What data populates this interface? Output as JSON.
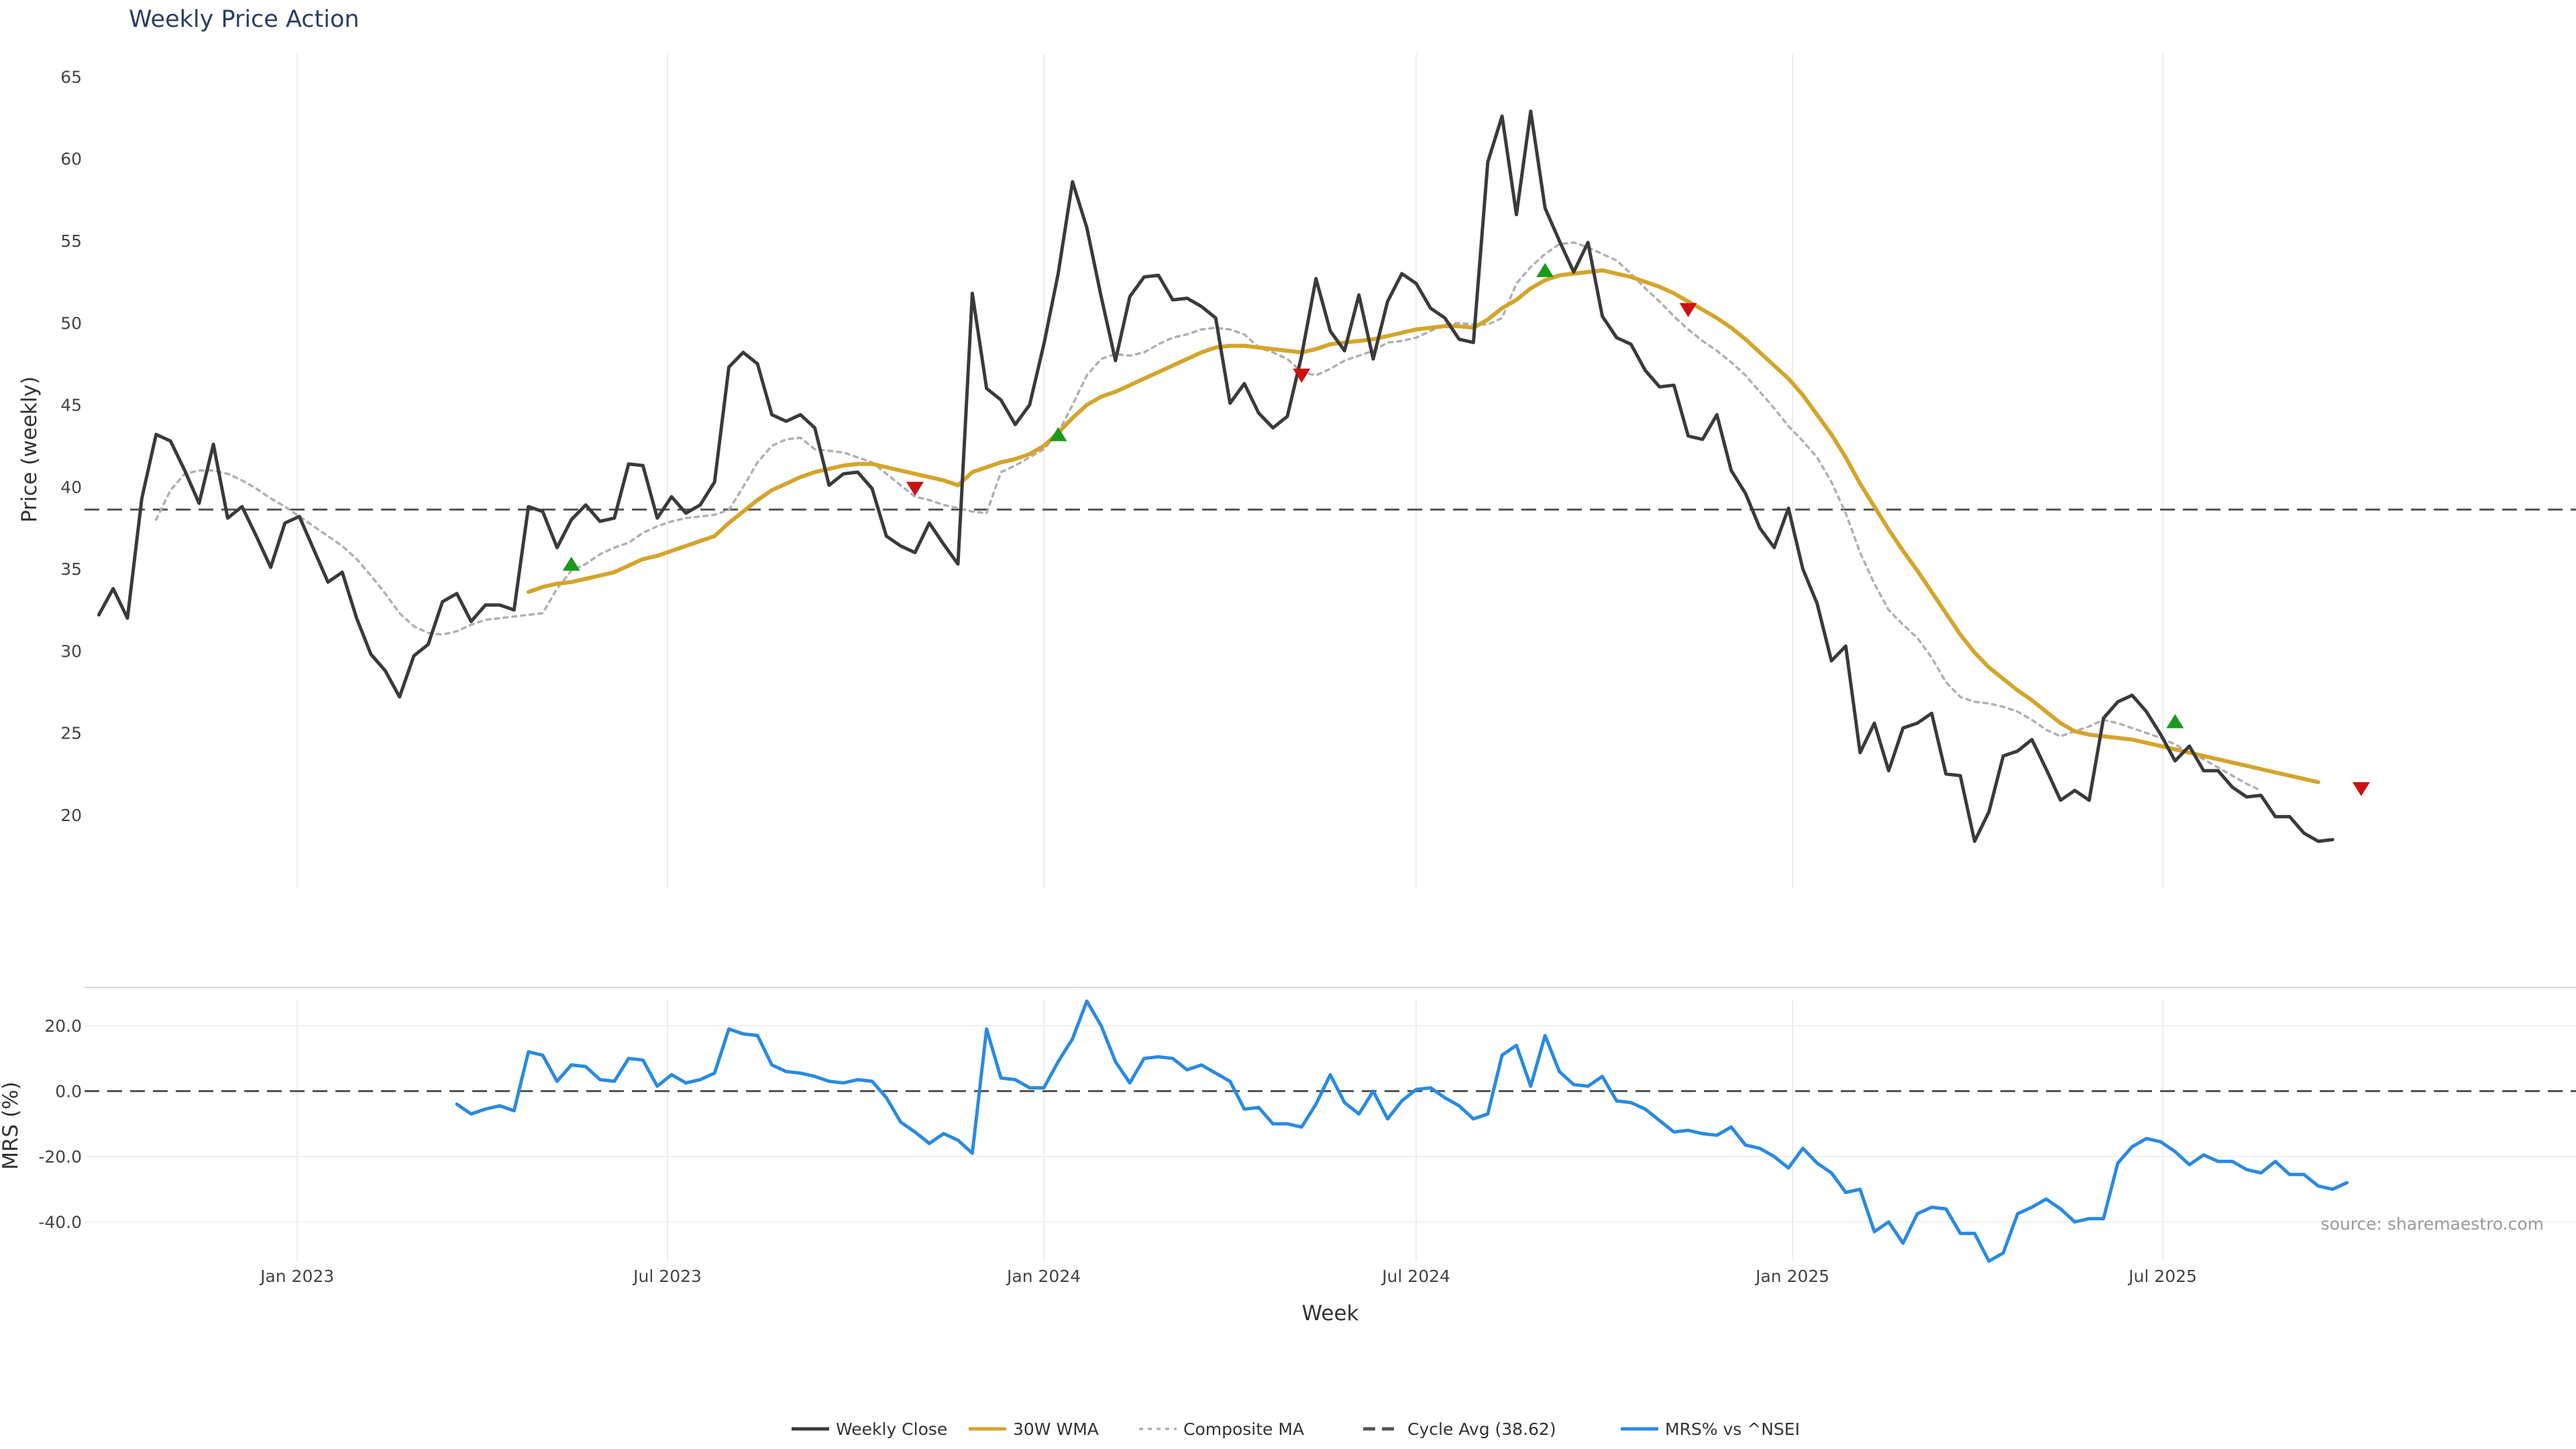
{
  "chart_data": {
    "type": "line",
    "title": "Weekly Price Action",
    "source_note": "source: sharemaestro.com",
    "xlabel": "Week",
    "x_range": [
      "2022-09-19",
      "2026-01-19"
    ],
    "x_tick_labels": [
      "Jan 2023",
      "Jul 2023",
      "Jan 2024",
      "Jul 2024",
      "Jan 2025",
      "Jul 2025"
    ],
    "x_tick_dates": [
      "2023-01-01",
      "2023-07-01",
      "2024-01-01",
      "2024-07-01",
      "2025-01-01",
      "2025-07-01"
    ],
    "vertical_grid": true,
    "horizontal_grid": false,
    "legend_position": "bottom-center",
    "price_panel": {
      "ylabel": "Price (weekly)",
      "ylim": [
        15.5,
        66
      ],
      "yticks": [
        20,
        25,
        30,
        35,
        40,
        45,
        50,
        55,
        60,
        65
      ],
      "cycle_avg": 38.62,
      "start_date": "2022-09-26",
      "series": [
        {
          "name": "Weekly Close",
          "color": "#3a3a3a",
          "values": [
            32.2,
            33.8,
            32.0,
            39.3,
            43.2,
            42.8,
            41.0,
            39.0,
            42.6,
            38.1,
            38.8,
            37.0,
            35.1,
            37.8,
            38.2,
            36.2,
            34.2,
            34.8,
            32.0,
            29.8,
            28.8,
            27.2,
            29.7,
            30.4,
            33.0,
            33.5,
            31.8,
            32.8,
            32.8,
            32.5,
            38.8,
            38.5,
            36.3,
            38.0,
            38.9,
            37.9,
            38.1,
            41.4,
            41.3,
            38.1,
            39.4,
            38.4,
            38.9,
            40.3,
            47.3,
            48.2,
            47.5,
            44.4,
            44.0,
            44.4,
            43.6,
            40.1,
            40.8,
            40.9,
            39.9,
            37.0,
            36.4,
            36.0,
            37.8,
            36.5,
            35.3,
            51.8,
            46.0,
            45.3,
            43.8,
            45.0,
            48.7,
            53.0,
            58.6,
            55.8,
            51.6,
            47.7,
            51.6,
            52.8,
            52.9,
            51.4,
            51.5,
            51.0,
            50.3,
            45.1,
            46.3,
            44.5,
            43.6,
            44.3,
            48.0,
            52.7,
            49.5,
            48.3,
            51.7,
            47.8,
            51.3,
            53.0,
            52.4,
            50.9,
            50.3,
            49.0,
            48.8,
            59.8,
            62.6,
            56.6,
            62.9,
            57.0,
            55.0,
            53.1,
            54.9,
            50.4,
            49.1,
            48.7,
            47.1,
            46.1,
            46.2,
            43.1,
            42.9,
            44.4,
            41.0,
            39.6,
            37.5,
            36.3,
            38.7,
            35.0,
            32.9,
            29.4,
            30.3,
            23.8,
            25.6,
            22.7,
            25.3,
            25.6,
            26.2,
            22.5,
            22.4,
            18.4,
            20.2,
            23.6,
            23.9,
            24.6,
            22.8,
            20.9,
            21.5,
            20.9,
            25.9,
            26.9,
            27.3,
            26.3,
            24.9,
            23.3,
            24.2,
            22.7,
            22.7,
            21.7,
            21.1,
            21.2,
            19.9,
            19.9,
            18.9,
            18.4,
            18.5
          ]
        },
        {
          "name": "30W WMA",
          "color": "#d4a52b",
          "start_index": 30,
          "values": [
            33.6,
            33.9,
            34.1,
            34.2,
            34.4,
            34.6,
            34.8,
            35.2,
            35.6,
            35.8,
            36.1,
            36.4,
            36.7,
            37.0,
            37.8,
            38.5,
            39.2,
            39.8,
            40.2,
            40.6,
            40.9,
            41.1,
            41.3,
            41.4,
            41.4,
            41.2,
            41.0,
            40.8,
            40.6,
            40.4,
            40.1,
            40.9,
            41.2,
            41.5,
            41.7,
            42.0,
            42.5,
            43.3,
            44.2,
            45.0,
            45.5,
            45.8,
            46.2,
            46.6,
            47.0,
            47.4,
            47.8,
            48.2,
            48.5,
            48.6,
            48.6,
            48.5,
            48.4,
            48.3,
            48.2,
            48.4,
            48.7,
            48.8,
            48.9,
            49.0,
            49.2,
            49.4,
            49.6,
            49.7,
            49.8,
            49.8,
            49.7,
            50.2,
            50.9,
            51.4,
            52.1,
            52.6,
            52.9,
            53.0,
            53.1,
            53.2,
            53.0,
            52.8,
            52.5,
            52.2,
            51.8,
            51.3,
            50.8,
            50.3,
            49.7,
            49.0,
            48.2,
            47.4,
            46.6,
            45.6,
            44.4,
            43.2,
            41.8,
            40.2,
            38.8,
            37.4,
            36.1,
            34.9,
            33.6,
            32.3,
            31.0,
            29.9,
            29.0,
            28.3,
            27.6,
            27.0,
            26.3,
            25.6,
            25.1,
            24.9,
            24.8,
            24.7,
            24.6,
            24.4,
            24.2,
            24.0,
            23.8,
            23.6,
            23.4,
            23.2,
            23.0,
            22.8,
            22.6,
            22.4,
            22.2,
            22.0
          ]
        },
        {
          "name": "Composite MA",
          "color": "#b0b0b0",
          "start_index": 4,
          "values": [
            38.0,
            39.8,
            40.8,
            41.0,
            41.0,
            40.8,
            40.4,
            39.9,
            39.3,
            38.8,
            38.2,
            37.6,
            37.0,
            36.4,
            35.6,
            34.6,
            33.5,
            32.3,
            31.5,
            31.1,
            31.0,
            31.2,
            31.6,
            31.9,
            32.0,
            32.1,
            32.2,
            32.3,
            33.8,
            34.9,
            35.3,
            35.9,
            36.3,
            36.6,
            37.2,
            37.6,
            37.9,
            38.1,
            38.2,
            38.3,
            38.6,
            40.0,
            41.5,
            42.5,
            42.9,
            43.0,
            42.3,
            42.2,
            42.1,
            41.8,
            41.5,
            40.8,
            40.1,
            39.4,
            39.2,
            38.9,
            38.7,
            38.5,
            38.4,
            40.9,
            41.3,
            41.8,
            42.3,
            43.3,
            45.0,
            46.8,
            47.8,
            48.1,
            48.0,
            48.2,
            48.7,
            49.1,
            49.3,
            49.6,
            49.7,
            49.6,
            49.3,
            48.5,
            48.2,
            47.8,
            47.0,
            46.8,
            47.2,
            47.7,
            48.0,
            48.3,
            48.8,
            48.9,
            49.1,
            49.5,
            49.9,
            50.0,
            49.9,
            49.9,
            50.3,
            52.4,
            53.4,
            54.2,
            54.8,
            54.9,
            54.6,
            54.2,
            53.8,
            53.0,
            52.1,
            51.3,
            50.4,
            49.6,
            48.9,
            48.3,
            47.6,
            46.8,
            45.8,
            44.8,
            43.7,
            42.8,
            41.8,
            40.3,
            38.4,
            36.0,
            34.1,
            32.5,
            31.6,
            30.8,
            29.6,
            28.1,
            27.2,
            26.9,
            26.8,
            26.6,
            26.3,
            25.8,
            25.2,
            24.8,
            25.1,
            25.4,
            25.8,
            25.6,
            25.3,
            25.0,
            24.7,
            24.3,
            23.8,
            23.4,
            22.9,
            22.4,
            21.9,
            21.5
          ]
        }
      ],
      "buy_signals": [
        {
          "index": 33,
          "value": 35.3
        },
        {
          "index": 67,
          "value": 43.2
        },
        {
          "index": 101,
          "value": 53.2
        },
        {
          "index": 145,
          "value": 25.7
        }
      ],
      "sell_signals": [
        {
          "index": 57,
          "value": 39.9
        },
        {
          "index": 84,
          "value": 46.8
        },
        {
          "index": 111,
          "value": 50.8
        },
        {
          "index": 158,
          "value": 21.6
        }
      ],
      "buy_color": "#1a9a1a",
      "sell_color": "#cc1111"
    },
    "mrs_panel": {
      "ylabel": "MRS (%)",
      "ylim": [
        -52,
        28
      ],
      "yticks": [
        20.0,
        0.0,
        -20.0,
        -40.0
      ],
      "zero_line": 0,
      "series": [
        {
          "name": "MRS% vs ^NSEI",
          "color": "#2a8ae0",
          "start_index": 25,
          "values": [
            -4,
            -7,
            -5.5,
            -4.5,
            -6,
            12,
            11,
            3,
            8,
            7.5,
            3.5,
            3,
            10,
            9.5,
            1.5,
            5,
            2.5,
            3.5,
            5.5,
            19,
            17.5,
            17,
            8,
            6,
            5.5,
            4.5,
            3,
            2.5,
            3.5,
            3,
            -2,
            -9.5,
            -12.5,
            -16,
            -13,
            -15,
            -19,
            19,
            4,
            3.5,
            1,
            1,
            9,
            16,
            27.5,
            20,
            9,
            2.5,
            10,
            10.5,
            10,
            6.5,
            8,
            5.5,
            3,
            -5.5,
            -5,
            -10,
            -10,
            -11,
            -4,
            5,
            -3.5,
            -7,
            0,
            -8.5,
            -3,
            0.5,
            1,
            -2,
            -4.5,
            -8.5,
            -7,
            11,
            14,
            1.5,
            17,
            6,
            2,
            1.5,
            4.5,
            -3,
            -3.5,
            -5.5,
            -9,
            -12.5,
            -12,
            -13,
            -13.5,
            -11,
            -16.5,
            -17.5,
            -20,
            -23.5,
            -17.5,
            -22,
            -25,
            -31,
            -30,
            -43,
            -40,
            -46.5,
            -37.5,
            -35.5,
            -36,
            -43.5,
            -43.5,
            -52,
            -49.5,
            -37.5,
            -35.5,
            -33,
            -36,
            -40,
            -39,
            -39,
            -22,
            -17,
            -14.5,
            -15.5,
            -18.5,
            -22.5,
            -19.5,
            -21.5,
            -21.5,
            -24,
            -25,
            -21.5,
            -25.5,
            -25.5,
            -29,
            -30,
            -28
          ]
        }
      ]
    },
    "legend": [
      {
        "label": "Weekly Close",
        "style": "solid",
        "color": "#3a3a3a"
      },
      {
        "label": "30W WMA",
        "style": "solid",
        "color": "#d4a52b"
      },
      {
        "label": "Composite MA",
        "style": "dotted",
        "color": "#b0b0b0"
      },
      {
        "label": "Cycle Avg (38.62)",
        "style": "dashed",
        "color": "#555555"
      },
      {
        "label": "MRS% vs ^NSEI",
        "style": "solid",
        "color": "#2a8ae0"
      }
    ]
  }
}
